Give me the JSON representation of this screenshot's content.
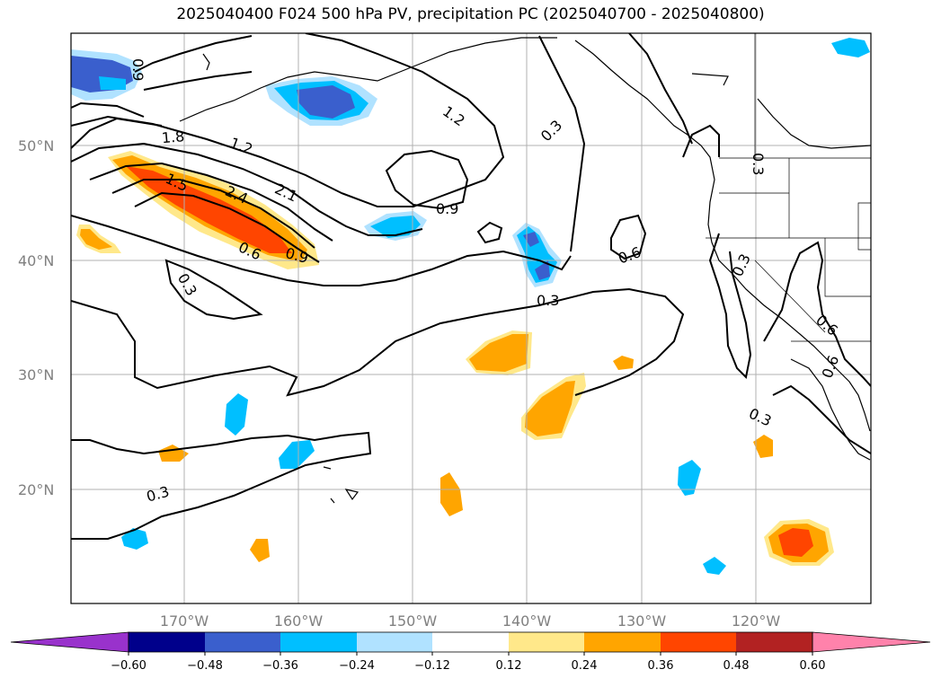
{
  "title": "2025040400 F024 500 hPa PV, precipitation PC (2025040700 - 2025040800)",
  "map": {
    "lat_labels": [
      "50°N",
      "40°N",
      "30°N",
      "20°N"
    ],
    "lon_labels": [
      "170°W",
      "160°W",
      "150°W",
      "140°W",
      "130°W",
      "120°W"
    ],
    "gridlines": true,
    "lon_range": [
      -180,
      -110
    ],
    "lat_range": [
      10,
      60
    ]
  },
  "pv_contour_labels": [
    "0.9",
    "1.2",
    "1.8",
    "1.2",
    "2.4",
    "2.1",
    "1.5",
    "0.6",
    "0.9",
    "0.3",
    "0.9",
    "0.3",
    "0.3",
    "0.6",
    "0.3",
    "0.3",
    "0.6",
    "0.6",
    "0.3",
    "0.3"
  ],
  "colorbar": {
    "ticks": [
      "−0.60",
      "−0.48",
      "−0.36",
      "−0.24",
      "−0.12",
      "0.12",
      "0.24",
      "0.36",
      "0.48",
      "0.60"
    ],
    "colors": [
      "#9932cc",
      "#00008b",
      "#3a5fcd",
      "#00bfff",
      "#b0e2ff",
      "#ffffff",
      "#ffe88a",
      "#ffa500",
      "#ff4500",
      "#b22222",
      "#ff82ab"
    ]
  }
}
